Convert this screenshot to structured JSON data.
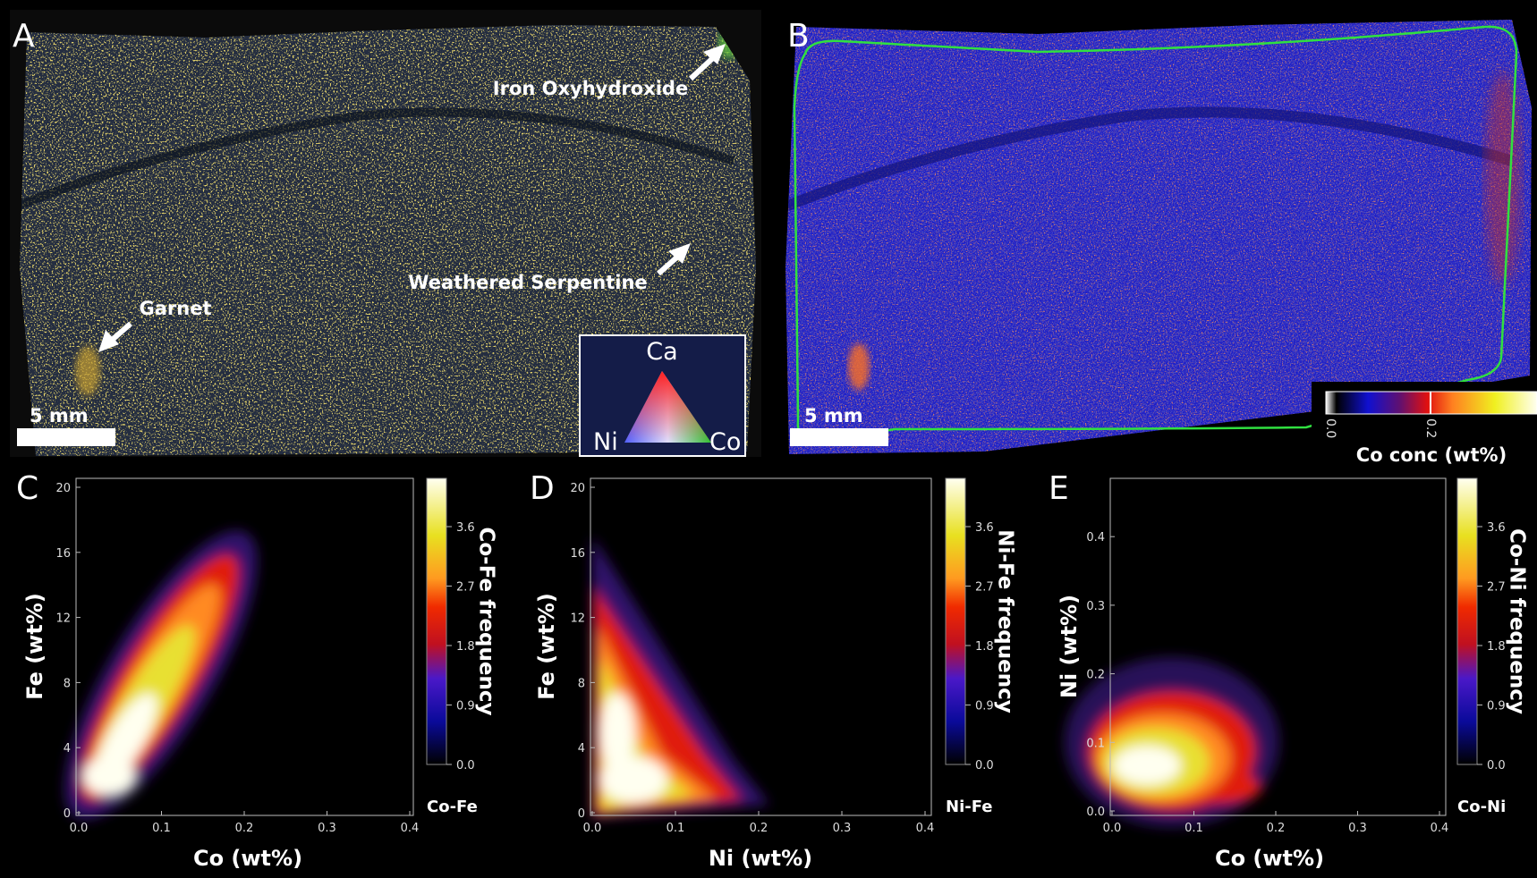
{
  "panels": [
    {
      "label": "A",
      "annotations": [
        "Iron Oxyhydroxide",
        "Weathered Serpentine",
        "Garnet"
      ],
      "scale_bar": "5 mm",
      "ternary": [
        "Ca",
        "Ni",
        "Co"
      ]
    },
    {
      "label": "B",
      "scale_bar": "5 mm",
      "colorbar": {
        "ticks": [
          "0.0",
          "0.2"
        ],
        "title": "Co conc (wt%)"
      }
    },
    {
      "label": "C",
      "x_label": "Co (wt%)",
      "y_label": "Fe (wt%)",
      "xticks": [
        "0.0",
        "0.1",
        "0.2",
        "0.3",
        "0.4"
      ],
      "yticks": [
        "0",
        "4",
        "8",
        "12",
        "16",
        "20"
      ],
      "colorbar": {
        "title": "Co-Fe frequency",
        "ticks": [
          "0.0",
          "0.9",
          "1.8",
          "2.7",
          "3.6"
        ],
        "name": "Co-Fe"
      }
    },
    {
      "label": "D",
      "x_label": "Ni (wt%)",
      "y_label": "Fe (wt%)",
      "xticks": [
        "0.0",
        "0.1",
        "0.2",
        "0.3",
        "0.4"
      ],
      "yticks": [
        "0",
        "4",
        "8",
        "12",
        "16",
        "20"
      ],
      "colorbar": {
        "title": "Ni-Fe frequency",
        "ticks": [
          "0.0",
          "0.9",
          "1.8",
          "2.7",
          "3.6"
        ],
        "name": "Ni-Fe"
      }
    },
    {
      "label": "E",
      "x_label": "Co (wt%)",
      "y_label": "Ni (wt%)",
      "xticks": [
        "0.0",
        "0.1",
        "0.2",
        "0.3",
        "0.4"
      ],
      "yticks": [
        "0.0",
        "0.1",
        "0.2",
        "0.3",
        "0.4"
      ],
      "colorbar": {
        "title": "Co-Ni frequency",
        "ticks": [
          "0.0",
          "0.9",
          "1.8",
          "2.7",
          "3.6"
        ],
        "name": "Co-Ni"
      }
    }
  ]
}
